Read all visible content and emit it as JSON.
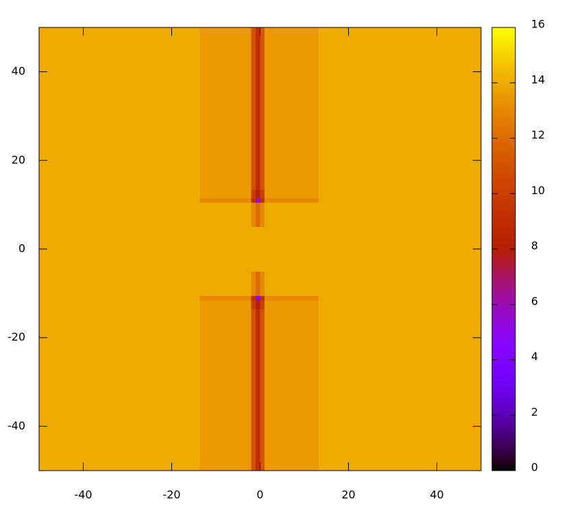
{
  "chart_data": {
    "type": "heatmap",
    "x": [
      -25,
      -2.5,
      -1.5,
      -0.5,
      0.5,
      1.5,
      25
    ],
    "y": [
      -45,
      -30,
      -15,
      -12,
      -11,
      -10,
      0,
      10,
      11,
      12,
      15,
      30,
      45
    ],
    "z": [
      [
        14,
        13.5,
        11,
        9,
        11,
        13.5,
        14
      ],
      [
        14,
        13.5,
        11,
        9,
        11,
        13.5,
        14
      ],
      [
        14,
        13.5,
        11,
        9,
        11,
        13.5,
        14
      ],
      [
        14,
        13.5,
        10,
        8,
        10,
        13.5,
        14
      ],
      [
        14,
        13,
        9,
        5,
        9,
        13,
        14
      ],
      [
        14,
        14,
        13,
        12,
        13,
        14,
        14
      ],
      [
        14,
        14,
        14,
        14,
        14,
        14,
        14
      ],
      [
        14,
        14,
        13,
        12,
        13,
        14,
        14
      ],
      [
        14,
        13,
        9,
        5,
        9,
        13,
        14
      ],
      [
        14,
        13.5,
        10,
        8,
        10,
        13.5,
        14
      ],
      [
        14,
        13.5,
        11,
        9,
        11,
        13.5,
        14
      ],
      [
        14,
        13.5,
        11,
        9,
        11,
        13.5,
        14
      ],
      [
        14,
        13.5,
        11,
        9,
        11,
        13.5,
        14
      ]
    ],
    "xlim": [
      -50,
      50
    ],
    "xticks": [
      -40,
      -20,
      0,
      20,
      40
    ],
    "ylim": [
      -50,
      50
    ],
    "yticks": [
      -40,
      -20,
      0,
      20,
      40
    ],
    "cblim": [
      0,
      16
    ],
    "cbticks": [
      0,
      2,
      4,
      6,
      8,
      10,
      12,
      14,
      16
    ]
  }
}
